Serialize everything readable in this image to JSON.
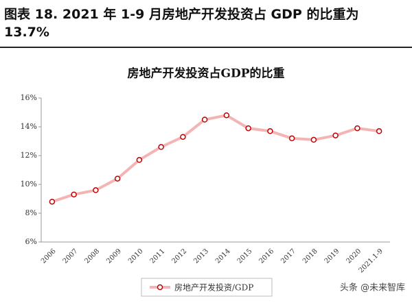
{
  "header": {
    "title": "图表 18. 2021 年 1-9 月房地产开发投资占 GDP 的比重为 13.7%"
  },
  "chart_data": {
    "type": "line",
    "title": "房地产开发投资占GDP的比重",
    "categories": [
      "2006",
      "2007",
      "2008",
      "2009",
      "2010",
      "2011",
      "2012",
      "2013",
      "2014",
      "2015",
      "2016",
      "2017",
      "2018",
      "2019",
      "2020",
      "2021.1-9"
    ],
    "series": [
      {
        "name": "房地产开发投资/GDP",
        "color": "#f4b4b4",
        "marker_color": "#c00000",
        "values": [
          8.8,
          9.3,
          9.6,
          10.4,
          11.7,
          12.6,
          13.3,
          14.5,
          14.8,
          13.9,
          13.7,
          13.2,
          13.1,
          13.4,
          13.9,
          13.7
        ]
      }
    ],
    "ylim": [
      6,
      16
    ],
    "yticks": [
      {
        "value": 6,
        "label": "6%"
      },
      {
        "value": 8,
        "label": "8%"
      },
      {
        "value": 10,
        "label": "10%"
      },
      {
        "value": 12,
        "label": "12%"
      },
      {
        "value": 14,
        "label": "14%"
      },
      {
        "value": 16,
        "label": "16%"
      }
    ],
    "grid": false,
    "legend": "bottom"
  },
  "watermark": "头条 @未来智库"
}
